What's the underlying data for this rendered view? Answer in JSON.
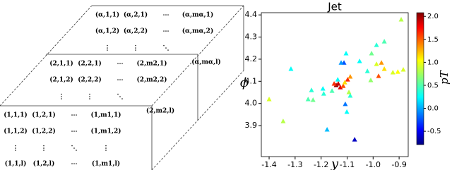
{
  "diagram": {
    "layers": [
      {
        "rows": [
          [
            "(α,1,1)",
            "(α,2,1)",
            "⋯",
            "(α,mα,1)"
          ],
          [
            "(α,1,2)",
            "(α,2,2)",
            "⋯",
            "(α,mα,2)"
          ],
          [
            "⋮",
            "⋮",
            "⋱"
          ]
        ],
        "corner": "(α,mα,l)"
      },
      {
        "rows": [
          [
            "(2,1,1)",
            "(2,2,1)",
            "⋯",
            "(2,m2,1)"
          ],
          [
            "(2,1,2)",
            "(2,2,2)",
            "⋯",
            "(2,m2,2)"
          ],
          [
            "⋮",
            "⋮",
            "⋱"
          ]
        ],
        "corner": "(2,m2,l)"
      },
      {
        "rows": [
          [
            "(1,1,1)",
            "(1,2,1)",
            "⋯",
            "(1,m1,1)"
          ],
          [
            "(1,1,2)",
            "(1,2,2)",
            "⋯",
            "(1,m1,2)"
          ],
          [
            "⋮",
            "⋮",
            "⋱",
            "⋮"
          ],
          [
            "(1,1,l)",
            "(1,2,l)",
            "⋯",
            "(1,m1,l)"
          ]
        ]
      }
    ]
  },
  "chart_data": {
    "type": "scatter",
    "title": "Jet",
    "x_label": "y",
    "y_label": "ϕ",
    "colorbar_label": "pT",
    "colormap": "jet",
    "x": [
      -0.892,
      -0.987,
      -0.957,
      -1.006,
      -1.104,
      -1.316,
      -1.4,
      -1.237,
      -1.25,
      -1.231,
      -1.193,
      -1.19,
      -1.158,
      -1.112,
      -1.123,
      -1.136,
      -1.098,
      -1.088,
      -1.142,
      -1.134,
      -1.126,
      -1.115,
      -1.109,
      -1.15,
      -1.093,
      -1.088,
      -1.107,
      -1.101,
      -1.177,
      -1.071,
      -1.346,
      -1.022,
      -0.987,
      -0.968,
      -0.957,
      -0.979,
      -0.924,
      -0.884,
      -0.905,
      -1.052,
      -1.009
    ],
    "y": [
      4.378,
      4.263,
      4.279,
      4.225,
      4.225,
      4.155,
      4.018,
      4.059,
      4.018,
      4.015,
      4.066,
      4.043,
      4.056,
      4.183,
      4.183,
      4.107,
      4.107,
      4.12,
      4.082,
      4.088,
      4.072,
      4.078,
      4.094,
      4.088,
      4.05,
      4.034,
      3.996,
      3.961,
      3.881,
      3.836,
      3.919,
      4.145,
      4.177,
      4.183,
      4.155,
      4.123,
      4.139,
      4.152,
      4.142,
      4.19,
      4.104
    ],
    "c": [
      0.8,
      0.4,
      0.5,
      0.6,
      0.3,
      0.3,
      0.9,
      0.4,
      0.5,
      0.6,
      0.3,
      0.4,
      0.5,
      -0.2,
      0.0,
      0.3,
      1.6,
      1.3,
      2.0,
      1.9,
      1.8,
      1.5,
      1.1,
      1.6,
      0.8,
      0.4,
      -0.1,
      0.3,
      0.1,
      -0.6,
      0.8,
      0.4,
      0.9,
      1.3,
      1.1,
      1.5,
      0.9,
      0.9,
      1.0,
      0.3,
      0.7
    ],
    "xlim": [
      -1.43,
      -0.865
    ],
    "xticks": [
      -1.4,
      -1.3,
      -1.2,
      -1.1,
      {
        "value": -1.0,
        "label": "-1.0"
      },
      -0.9
    ],
    "ylim": [
      3.76,
      4.41
    ],
    "yticks": [
      3.9,
      {
        "value": 4.0,
        "label": "4.0"
      },
      4.1,
      4.2,
      4.3,
      4.4
    ],
    "clim": [
      -0.79,
      2.08
    ],
    "cticks": [
      -0.5,
      {
        "value": 0.0,
        "label": "0.0"
      },
      0.5,
      {
        "value": 1.0,
        "label": "1.0"
      },
      1.5,
      {
        "value": 2.0,
        "label": "2.0"
      }
    ]
  }
}
